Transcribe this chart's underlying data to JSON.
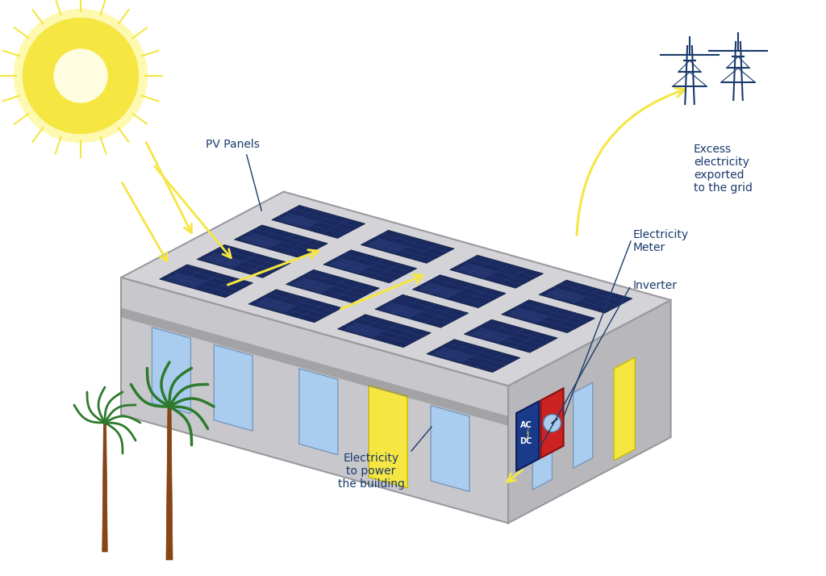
{
  "bg_color": "#ffffff",
  "label_color": "#1a3a6b",
  "arrow_color": "#f5e642",
  "sun_color": "#f5e642",
  "sun_inner_color": "#fffde0",
  "sun_glow_color": "#fef9b0",
  "building_top_color": "#d4d4d8",
  "building_front_color": "#c8c8cc",
  "building_side_color": "#b8b8bc",
  "building_edge_color": "#9a9a9e",
  "solar_panel_bg": "#1a2a5e",
  "solar_panel_grid": "#2a3a7e",
  "solar_shine": "#3a4a8e",
  "window_color": "#aaccee",
  "window_edge": "#7799bb",
  "door_color": "#f5e642",
  "door_edge": "#c8b800",
  "palm_trunk_color": "#8B4513",
  "palm_leaf_color": "#2d7a2d",
  "inverter_bg": "#1a3a8a",
  "inverter_bolt_color": "#f5e642",
  "meter_bg": "#cc2222",
  "meter_circle_color": "#aaccee",
  "grid_tower_color": "#1a3a6b",
  "label_fontsize": 10,
  "labels": {
    "pv_panels": "PV Panels",
    "electricity_meter": "Electricity\nMeter",
    "inverter": "Inverter",
    "electricity_building": "Electricity\nto power\nthe building",
    "excess_electricity": "Excess\nelectricity\nexported\nto the grid"
  }
}
